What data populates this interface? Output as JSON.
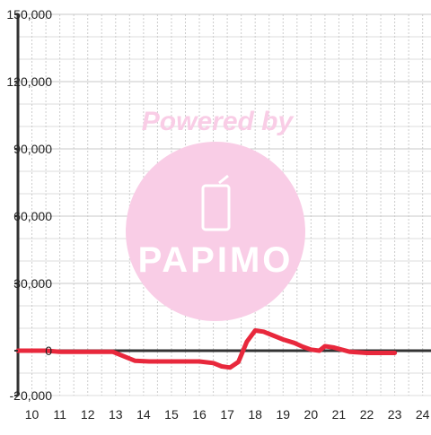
{
  "watermark": {
    "text": "Powered by",
    "logo_text": "PAPIMO",
    "color": "#f9cde6"
  },
  "chart_data": {
    "type": "line",
    "title": "",
    "xlabel": "",
    "ylabel": "",
    "xlim": [
      9.5,
      24.3
    ],
    "ylim": [
      -20000,
      150000
    ],
    "x_ticks": [
      10,
      11,
      12,
      13,
      14,
      15,
      16,
      17,
      18,
      19,
      20,
      21,
      22,
      23,
      24
    ],
    "y_ticks": [
      150000,
      120000,
      90000,
      60000,
      30000,
      0,
      -20000
    ],
    "y_tick_labels": [
      "150,000",
      "120,000",
      "90,000",
      "60,000",
      "30,000",
      "0",
      "-20,000"
    ],
    "grid": true,
    "legend": "none",
    "series": [
      {
        "color": "#e8283c",
        "points": [
          [
            9.5,
            0
          ],
          [
            10.5,
            0
          ],
          [
            11.0,
            -500
          ],
          [
            12.0,
            -500
          ],
          [
            12.9,
            -500
          ],
          [
            13.3,
            -2500
          ],
          [
            13.7,
            -4500
          ],
          [
            14.2,
            -4800
          ],
          [
            15.0,
            -4800
          ],
          [
            16.0,
            -4800
          ],
          [
            16.5,
            -5500
          ],
          [
            16.8,
            -7000
          ],
          [
            17.1,
            -7500
          ],
          [
            17.4,
            -5000
          ],
          [
            17.7,
            4000
          ],
          [
            18.0,
            9000
          ],
          [
            18.3,
            8500
          ],
          [
            18.6,
            7000
          ],
          [
            19.0,
            5000
          ],
          [
            19.4,
            3500
          ],
          [
            19.7,
            1800
          ],
          [
            20.0,
            500
          ],
          [
            20.3,
            0
          ],
          [
            20.5,
            2000
          ],
          [
            20.8,
            1500
          ],
          [
            21.1,
            500
          ],
          [
            21.4,
            -500
          ],
          [
            22.0,
            -1000
          ],
          [
            23.0,
            -1000
          ]
        ]
      }
    ]
  }
}
